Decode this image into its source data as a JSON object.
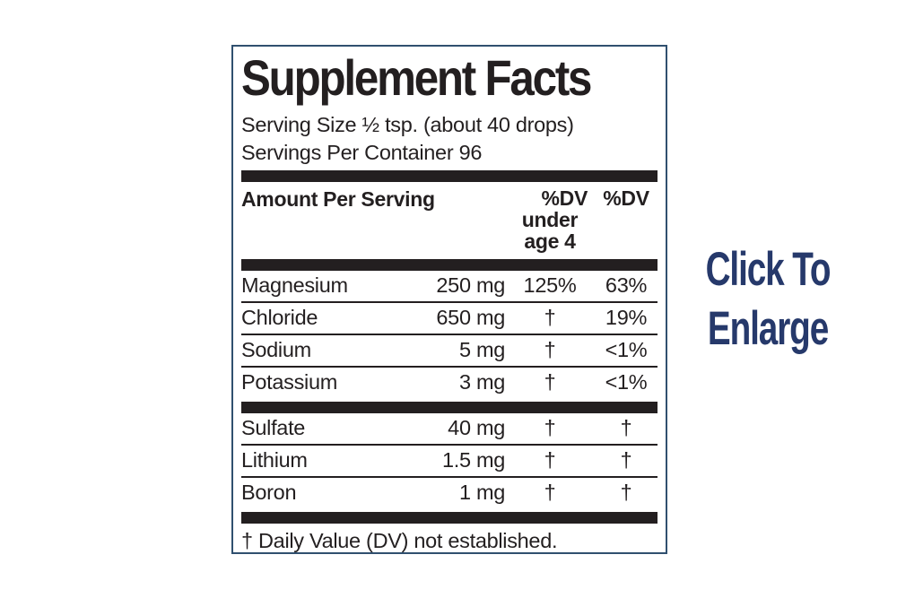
{
  "label": {
    "title": "Supplement Facts",
    "serving_size": "Serving Size ½ tsp. (about 40 drops)",
    "servings_per_container": "Servings Per Container 96",
    "header": {
      "amount": "Amount Per Serving",
      "dv_under4": [
        "%DV",
        "under",
        "age 4"
      ],
      "dv": "%DV"
    },
    "rows": [
      {
        "name": "Magnesium",
        "amount": "250 mg",
        "dv_under4": "125%",
        "dv": "63%"
      },
      {
        "name": "Chloride",
        "amount": "650 mg",
        "dv_under4": "†",
        "dv": "19%"
      },
      {
        "name": "Sodium",
        "amount": "5 mg",
        "dv_under4": "†",
        "dv": "<1%"
      },
      {
        "name": "Potassium",
        "amount": "3 mg",
        "dv_under4": "†",
        "dv": "<1%"
      },
      {
        "name": "Sulfate",
        "amount": "40 mg",
        "dv_under4": "†",
        "dv": "†"
      },
      {
        "name": "Lithium",
        "amount": "1.5 mg",
        "dv_under4": "†",
        "dv": "†"
      },
      {
        "name": "Boron",
        "amount": "1 mg",
        "dv_under4": "†",
        "dv": "†"
      }
    ],
    "footnote": "† Daily Value (DV) not established."
  },
  "enlarge": {
    "line1": "Click To",
    "line2": "Enlarge"
  },
  "colors": {
    "ink": "#231f20",
    "navy": "#26396b",
    "box_border": "#30506f"
  }
}
